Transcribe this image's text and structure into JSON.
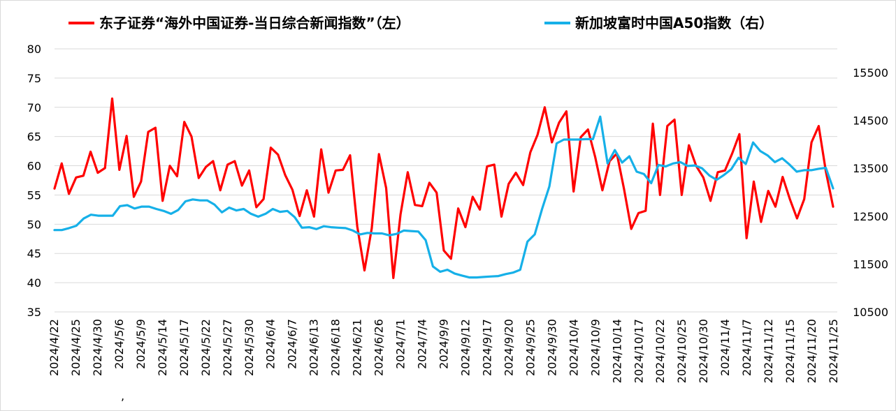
{
  "chart_data": {
    "type": "line",
    "legend": [
      {
        "label": "东子证券“海外中国证券-当日综合新闻指数”（左）",
        "color": "#ff0000",
        "axis": "left"
      },
      {
        "label": "新加坡富时中国A50指数（右）",
        "color": "#16b0e8",
        "axis": "right"
      }
    ],
    "legend_placement": "top-center",
    "grid": true,
    "y_left": {
      "min": 35,
      "max": 80,
      "ticks": [
        "35",
        "40",
        "45",
        "50",
        "55",
        "60",
        "65",
        "70",
        "75",
        "80"
      ]
    },
    "y_right": {
      "min": 10500,
      "max": 15500,
      "ticks": [
        "10500",
        "11500",
        "12500",
        "13500",
        "14500",
        "15500"
      ]
    },
    "x_tick_labels": [
      "2024/4/22",
      "2024/4/25",
      "2024/4/30",
      "2024/5/6",
      "2024/5/9",
      "2024/5/14",
      "2024/5/17",
      "2024/5/22",
      "2024/5/27",
      "2024/5/30",
      "2024/6/4",
      "2024/6/7",
      "2024/6/13",
      "2024/6/18",
      "2024/6/21",
      "2024/6/26",
      "2024/7/1",
      "2024/7/4",
      "2024/9/9",
      "2024/9/12",
      "2024/9/17",
      "2024/9/20",
      "2024/9/25",
      "2024/9/30",
      "2024/10/4",
      "2024/10/9",
      "2024/10/14",
      "2024/10/17",
      "2024/10/22",
      "2024/10/25",
      "2024/10/30",
      "2024/11/4",
      "2024/11/7",
      "2024/11/12",
      "2024/11/15",
      "2024/11/20",
      "2024/11/25"
    ],
    "stray_mark": ",",
    "series": [
      {
        "name": "东子证券“海外中国证券-当日综合新闻指数”（左）",
        "axis": "left",
        "values": [
          56.1,
          60.4,
          55.2,
          58.0,
          58.3,
          62.4,
          58.8,
          59.6,
          71.5,
          59.3,
          65.1,
          54.7,
          57.3,
          65.8,
          66.5,
          54.0,
          60.0,
          58.2,
          67.5,
          65.0,
          57.9,
          59.8,
          60.8,
          55.8,
          60.2,
          60.8,
          56.6,
          59.2,
          52.9,
          54.3,
          63.1,
          61.9,
          58.4,
          55.9,
          51.4,
          55.8,
          51.3,
          62.8,
          55.4,
          59.2,
          59.3,
          61.8,
          49.6,
          42.1,
          49.3,
          62.0,
          56.2,
          40.8,
          51.7,
          58.9,
          53.3,
          53.1,
          57.1,
          55.4,
          45.5,
          44.1,
          52.7,
          49.5,
          54.7,
          52.5,
          59.9,
          60.2,
          51.3,
          56.9,
          58.8,
          56.7,
          62.3,
          65.3,
          70.0,
          64.0,
          67.4,
          69.3,
          55.6,
          64.9,
          66.2,
          61.5,
          55.8,
          60.8,
          62.1,
          56.0,
          49.2,
          51.9,
          52.3,
          67.2,
          55.0,
          66.8,
          67.9,
          55.0,
          63.5,
          60.0,
          58.0,
          54.0,
          58.9,
          59.2,
          62.1,
          65.4,
          47.6,
          57.3,
          50.4,
          55.7,
          53.0,
          58.1,
          54.3,
          51.0,
          54.3,
          64.0,
          66.8,
          59.0,
          53.0
        ]
      },
      {
        "name": "新加坡富时中国A50指数（右）",
        "axis": "right",
        "values": [
          12210,
          12210,
          12250,
          12300,
          12450,
          12530,
          12510,
          12510,
          12510,
          12710,
          12730,
          12660,
          12700,
          12700,
          12650,
          12610,
          12550,
          12630,
          12810,
          12850,
          12830,
          12830,
          12740,
          12580,
          12680,
          12620,
          12650,
          12550,
          12490,
          12550,
          12650,
          12590,
          12610,
          12480,
          12260,
          12270,
          12230,
          12290,
          12270,
          12260,
          12250,
          12200,
          12120,
          12150,
          12140,
          12140,
          12100,
          12130,
          12200,
          12190,
          12180,
          12000,
          11450,
          11340,
          11380,
          11300,
          11260,
          11220,
          11220,
          11230,
          11240,
          11250,
          11290,
          11320,
          11380,
          11970,
          12120,
          12650,
          13120,
          14020,
          14100,
          14100,
          14100,
          14110,
          14110,
          14580,
          13600,
          13880,
          13620,
          13750,
          13430,
          13380,
          13190,
          13570,
          13540,
          13600,
          13630,
          13550,
          13560,
          13500,
          13350,
          13260,
          13360,
          13480,
          13720,
          13590,
          14040,
          13860,
          13770,
          13630,
          13710,
          13580,
          13430,
          13460,
          13460,
          13490,
          13510,
          13080
        ]
      }
    ]
  }
}
